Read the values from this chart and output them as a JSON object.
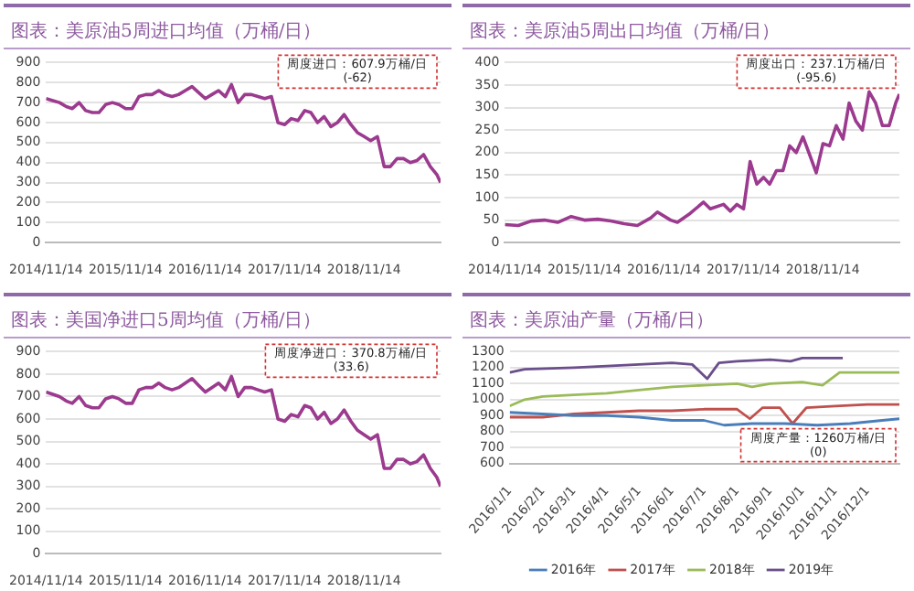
{
  "chart_data": [
    {
      "type": "line",
      "title": "图表：美原油5周进口均值（万桶/日）",
      "marker": "none",
      "grid": "y",
      "legend": false,
      "color": "#9b3a8e",
      "x": [
        "2014-11-14",
        "2014-12-15",
        "2015-01-15",
        "2015-02-15",
        "2015-03-15",
        "2015-04-15",
        "2015-05-15",
        "2015-06-15",
        "2015-07-15",
        "2015-08-15",
        "2015-09-15",
        "2015-10-15",
        "2015-11-15",
        "2015-12-15",
        "2016-01-15",
        "2016-02-15",
        "2016-03-15",
        "2016-04-15",
        "2016-05-15",
        "2016-06-15",
        "2016-07-15",
        "2016-08-15",
        "2016-09-15",
        "2016-10-15",
        "2016-11-15",
        "2016-12-15",
        "2017-01-15",
        "2017-02-15",
        "2017-03-15",
        "2017-04-15",
        "2017-05-15",
        "2017-06-15",
        "2017-07-15",
        "2017-08-15",
        "2017-09-15",
        "2017-10-15",
        "2017-11-15",
        "2017-12-15",
        "2018-01-15",
        "2018-02-15",
        "2018-03-15",
        "2018-04-15",
        "2018-05-15",
        "2018-06-15",
        "2018-07-15",
        "2018-08-15",
        "2018-09-15",
        "2018-10-15",
        "2018-11-15",
        "2018-12-15",
        "2019-01-15",
        "2019-02-15",
        "2019-03-15",
        "2019-04-15",
        "2019-05-15",
        "2019-06-15",
        "2019-07-15",
        "2019-08-15",
        "2019-09-15",
        "2019-10-15",
        "2019-11-01"
      ],
      "values": [
        720,
        710,
        700,
        680,
        670,
        700,
        660,
        650,
        650,
        690,
        700,
        690,
        670,
        670,
        730,
        740,
        740,
        760,
        740,
        730,
        740,
        760,
        780,
        750,
        720,
        740,
        760,
        730,
        790,
        700,
        740,
        740,
        730,
        720,
        730,
        600,
        590,
        620,
        610,
        660,
        650,
        600,
        630,
        580,
        600,
        640,
        590,
        550,
        530,
        510,
        530,
        380,
        380,
        420,
        420,
        400,
        410,
        440,
        380,
        340,
        300
      ],
      "xlim": [
        "2014-11-14",
        "2019-11-01"
      ],
      "xticks": [
        {
          "value": "2014-11-14",
          "label": "2014/11/14"
        },
        {
          "value": "2015-11-14",
          "label": "2015/11/14"
        },
        {
          "value": "2016-11-14",
          "label": "2016/11/14"
        },
        {
          "value": "2017-11-14",
          "label": "2017/11/14"
        },
        {
          "value": "2018-11-14",
          "label": "2018/11/14"
        }
      ],
      "ylim": [
        0,
        900
      ],
      "yticks": [
        0,
        100,
        200,
        300,
        400,
        500,
        600,
        700,
        800,
        900
      ],
      "annotations": [
        "周度进口：607.9万桶/日\n(-62)"
      ]
    },
    {
      "type": "line",
      "title": "图表：美原油5周出口均值（万桶/日）",
      "marker": "none",
      "grid": "y",
      "legend": false,
      "color": "#9b3a8e",
      "x": [
        "2014-11-14",
        "2015-01-15",
        "2015-03-15",
        "2015-05-15",
        "2015-07-15",
        "2015-09-15",
        "2015-11-15",
        "2016-01-15",
        "2016-03-15",
        "2016-05-15",
        "2016-07-15",
        "2016-09-15",
        "2016-10-15",
        "2016-12-15",
        "2017-01-15",
        "2017-03-15",
        "2017-05-15",
        "2017-06-15",
        "2017-08-15",
        "2017-09-15",
        "2017-10-15",
        "2017-11-15",
        "2017-12-15",
        "2018-01-15",
        "2018-02-15",
        "2018-03-15",
        "2018-04-15",
        "2018-05-15",
        "2018-06-15",
        "2018-07-15",
        "2018-08-15",
        "2018-09-15",
        "2018-10-15",
        "2018-11-15",
        "2018-12-15",
        "2019-01-15",
        "2019-02-15",
        "2019-03-15",
        "2019-04-15",
        "2019-05-15",
        "2019-06-15",
        "2019-07-15",
        "2019-08-15",
        "2019-09-15",
        "2019-10-15",
        "2019-11-01"
      ],
      "values": [
        40,
        38,
        48,
        50,
        45,
        58,
        50,
        52,
        48,
        42,
        38,
        55,
        68,
        50,
        45,
        65,
        90,
        75,
        85,
        70,
        85,
        75,
        180,
        130,
        145,
        130,
        160,
        160,
        215,
        200,
        235,
        195,
        155,
        220,
        215,
        260,
        230,
        310,
        270,
        250,
        335,
        310,
        260,
        260,
        310,
        330
      ],
      "xlim": [
        "2014-11-14",
        "2019-11-01"
      ],
      "xticks": [
        {
          "value": "2014-11-14",
          "label": "2014/11/14"
        },
        {
          "value": "2015-11-14",
          "label": "2015/11/14"
        },
        {
          "value": "2016-11-14",
          "label": "2016/11/14"
        },
        {
          "value": "2017-11-14",
          "label": "2017/11/14"
        },
        {
          "value": "2018-11-14",
          "label": "2018/11/14"
        }
      ],
      "ylim": [
        0,
        400
      ],
      "yticks": [
        0,
        50,
        100,
        150,
        200,
        250,
        300,
        350,
        400
      ],
      "annotations": [
        "周度出口：237.1万桶/日\n(-95.6)"
      ]
    },
    {
      "type": "line",
      "title": "图表：美国净进口5周均值（万桶/日）",
      "marker": "none",
      "grid": "y",
      "legend": false,
      "color": "#9b3a8e",
      "x": [
        "2014-11-14",
        "2014-12-15",
        "2015-01-15",
        "2015-02-15",
        "2015-03-15",
        "2015-04-15",
        "2015-05-15",
        "2015-06-15",
        "2015-07-15",
        "2015-08-15",
        "2015-09-15",
        "2015-10-15",
        "2015-11-15",
        "2015-12-15",
        "2016-01-15",
        "2016-02-15",
        "2016-03-15",
        "2016-04-15",
        "2016-05-15",
        "2016-06-15",
        "2016-07-15",
        "2016-08-15",
        "2016-09-15",
        "2016-10-15",
        "2016-11-15",
        "2016-12-15",
        "2017-01-15",
        "2017-02-15",
        "2017-03-15",
        "2017-04-15",
        "2017-05-15",
        "2017-06-15",
        "2017-07-15",
        "2017-08-15",
        "2017-09-15",
        "2017-10-15",
        "2017-11-15",
        "2017-12-15",
        "2018-01-15",
        "2018-02-15",
        "2018-03-15",
        "2018-04-15",
        "2018-05-15",
        "2018-06-15",
        "2018-07-15",
        "2018-08-15",
        "2018-09-15",
        "2018-10-15",
        "2018-11-15",
        "2018-12-15",
        "2019-01-15",
        "2019-02-15",
        "2019-03-15",
        "2019-04-15",
        "2019-05-15",
        "2019-06-15",
        "2019-07-15",
        "2019-08-15",
        "2019-09-15",
        "2019-10-15",
        "2019-11-01"
      ],
      "values": [
        720,
        710,
        700,
        680,
        670,
        700,
        660,
        650,
        650,
        690,
        700,
        690,
        670,
        670,
        730,
        740,
        740,
        760,
        740,
        730,
        740,
        760,
        780,
        750,
        720,
        740,
        760,
        730,
        790,
        700,
        740,
        740,
        730,
        720,
        730,
        600,
        590,
        620,
        610,
        660,
        650,
        600,
        630,
        580,
        600,
        640,
        590,
        550,
        530,
        510,
        530,
        380,
        380,
        420,
        420,
        400,
        410,
        440,
        380,
        340,
        300
      ],
      "xlim": [
        "2014-11-14",
        "2019-11-01"
      ],
      "xticks": [
        {
          "value": "2014-11-14",
          "label": "2014/11/14"
        },
        {
          "value": "2015-11-14",
          "label": "2015/11/14"
        },
        {
          "value": "2016-11-14",
          "label": "2016/11/14"
        },
        {
          "value": "2017-11-14",
          "label": "2017/11/14"
        },
        {
          "value": "2018-11-14",
          "label": "2018/11/14"
        }
      ],
      "ylim": [
        0,
        900
      ],
      "yticks": [
        0,
        100,
        200,
        300,
        400,
        500,
        600,
        700,
        800,
        900
      ],
      "annotations": [
        "周度净进口：370.8万桶/日\n(33.6)"
      ]
    },
    {
      "type": "line",
      "title": "图表：美原油产量（万桶/日）",
      "marker": "none",
      "grid": "y",
      "legend": "bottom",
      "series": [
        {
          "name": "2016年",
          "color": "#4a7ebb",
          "x": [
            "2016-01-01",
            "2016-02-01",
            "2016-03-01",
            "2016-04-01",
            "2016-05-01",
            "2016-06-01",
            "2016-07-01",
            "2016-07-20",
            "2016-08-15",
            "2016-09-15",
            "2016-10-15",
            "2016-11-15",
            "2016-12-15",
            "2016-12-31"
          ],
          "values": [
            920,
            910,
            900,
            900,
            890,
            870,
            870,
            840,
            850,
            850,
            840,
            850,
            870,
            880
          ]
        },
        {
          "name": "2017年",
          "color": "#c0504d",
          "x": [
            "2016-01-01",
            "2016-02-01",
            "2016-03-01",
            "2016-04-01",
            "2016-05-01",
            "2016-06-01",
            "2016-07-01",
            "2016-08-01",
            "2016-08-13",
            "2016-08-25",
            "2016-09-10",
            "2016-09-22",
            "2016-10-05",
            "2016-11-01",
            "2016-12-01",
            "2016-12-31"
          ],
          "values": [
            890,
            890,
            910,
            920,
            930,
            930,
            940,
            940,
            880,
            950,
            950,
            850,
            950,
            960,
            970,
            970
          ]
        },
        {
          "name": "2018年",
          "color": "#9bbb59",
          "x": [
            "2016-01-01",
            "2016-01-15",
            "2016-02-01",
            "2016-03-01",
            "2016-04-01",
            "2016-05-01",
            "2016-06-01",
            "2016-07-01",
            "2016-08-01",
            "2016-08-15",
            "2016-09-01",
            "2016-10-01",
            "2016-10-20",
            "2016-11-05",
            "2016-12-01",
            "2016-12-31"
          ],
          "values": [
            960,
            1000,
            1020,
            1030,
            1040,
            1060,
            1080,
            1090,
            1100,
            1080,
            1100,
            1110,
            1090,
            1170,
            1170,
            1170
          ]
        },
        {
          "name": "2019年",
          "color": "#6b4e8c",
          "x": [
            "2016-01-01",
            "2016-01-15",
            "2016-03-01",
            "2016-04-01",
            "2016-05-01",
            "2016-06-01",
            "2016-06-20",
            "2016-07-04",
            "2016-07-15",
            "2016-08-01",
            "2016-09-01",
            "2016-09-20",
            "2016-10-01",
            "2016-11-08"
          ],
          "values": [
            1170,
            1190,
            1200,
            1210,
            1220,
            1230,
            1220,
            1130,
            1230,
            1240,
            1250,
            1240,
            1260,
            1260
          ]
        }
      ],
      "xlim": [
        "2016-01-01",
        "2016-12-31"
      ],
      "xticks": [
        {
          "value": "2016-01-01",
          "label": "2016/1/1"
        },
        {
          "value": "2016-02-01",
          "label": "2016/2/1"
        },
        {
          "value": "2016-03-01",
          "label": "2016/3/1"
        },
        {
          "value": "2016-04-01",
          "label": "2016/4/1"
        },
        {
          "value": "2016-05-01",
          "label": "2016/5/1"
        },
        {
          "value": "2016-06-01",
          "label": "2016/6/1"
        },
        {
          "value": "2016-07-01",
          "label": "2016/7/1"
        },
        {
          "value": "2016-08-01",
          "label": "2016/8/1"
        },
        {
          "value": "2016-09-01",
          "label": "2016/9/1"
        },
        {
          "value": "2016-10-01",
          "label": "2016/10/1"
        },
        {
          "value": "2016-11-01",
          "label": "2016/11/1"
        },
        {
          "value": "2016-12-01",
          "label": "2016/12/1"
        }
      ],
      "ylim": [
        600,
        1300
      ],
      "yticks": [
        600,
        700,
        800,
        900,
        1000,
        1100,
        1200,
        1300
      ],
      "annotations": [
        "周度产量：1260万桶/日\n(0)"
      ]
    }
  ]
}
